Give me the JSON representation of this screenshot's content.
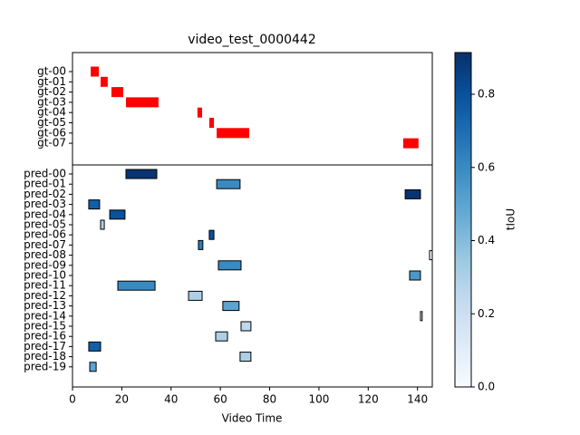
{
  "chart_data": {
    "type": "gantt",
    "title": "video_test_0000442",
    "x_label": "Video Time",
    "xlim": [
      0,
      146
    ],
    "xticks": [
      0,
      20,
      40,
      60,
      80,
      100,
      120,
      140
    ],
    "gt": {
      "color": "#ff0000",
      "categories": [
        "gt-00",
        "gt-01",
        "gt-02",
        "gt-03",
        "gt-04",
        "gt-05",
        "gt-06",
        "gt-07"
      ],
      "starts": [
        7.4,
        11.4,
        15.8,
        21.7,
        50.7,
        55.5,
        58.5,
        134.2
      ],
      "ends": [
        10.7,
        14.3,
        20.6,
        34.9,
        52.6,
        57.4,
        71.7,
        140.4
      ]
    },
    "pred": {
      "categories": [
        "pred-00",
        "pred-01",
        "pred-02",
        "pred-03",
        "pred-04",
        "pred-05",
        "pred-06",
        "pred-07",
        "pred-08",
        "pred-09",
        "pred-10",
        "pred-11",
        "pred-12",
        "pred-13",
        "pred-14",
        "pred-15",
        "pred-16",
        "pred-17",
        "pred-18",
        "pred-19"
      ],
      "starts": [
        21.7,
        58.5,
        135.0,
        6.6,
        15.1,
        11.4,
        55.5,
        51.1,
        144.9,
        59.2,
        136.8,
        18.4,
        47.1,
        61.0,
        141.2,
        68.4,
        58.1,
        6.6,
        68.0,
        7.0
      ],
      "ends": [
        34.2,
        68.0,
        141.2,
        11.0,
        21.3,
        12.9,
        57.4,
        52.9,
        147.0,
        68.4,
        141.2,
        33.5,
        52.6,
        67.6,
        141.9,
        72.4,
        62.9,
        11.4,
        72.4,
        9.6
      ],
      "tiou": [
        0.9,
        0.6,
        0.9,
        0.75,
        0.8,
        0.3,
        0.8,
        0.65,
        0,
        0.6,
        0.55,
        0.6,
        0.3,
        0.5,
        0.1,
        0.25,
        0.3,
        0.75,
        0.3,
        0.5
      ]
    },
    "colorbar": {
      "label": "tIoU",
      "colormap": [
        "#f7fbff",
        "#deebf7",
        "#c6dbef",
        "#9ecae1",
        "#6baed6",
        "#4292c6",
        "#2171b5",
        "#08519c",
        "#08306b"
      ],
      "lim": [
        0,
        0.914
      ],
      "ticks": [
        {
          "value": 0,
          "label": "0.0"
        },
        {
          "value": 0.2,
          "label": "0.2"
        },
        {
          "value": 0.4,
          "label": "0.4"
        },
        {
          "value": 0.6,
          "label": "0.6"
        },
        {
          "value": 0.8,
          "label": "0.8"
        }
      ]
    }
  }
}
